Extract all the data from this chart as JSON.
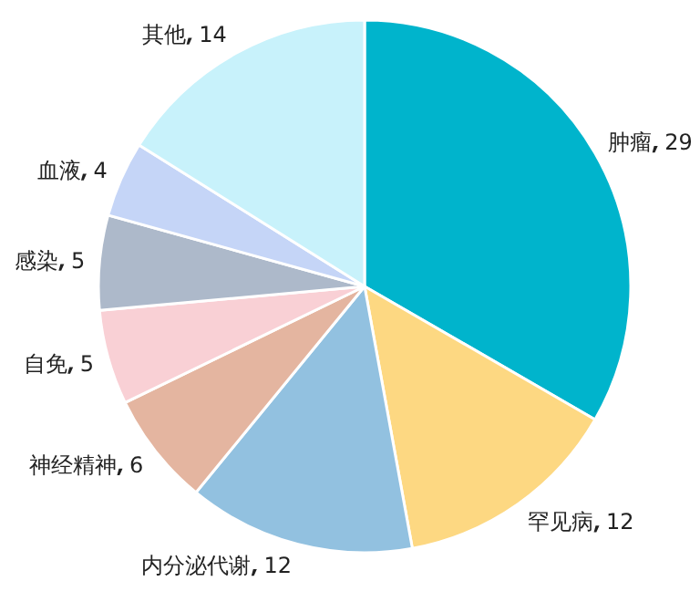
{
  "chart_data": {
    "type": "pie",
    "categories": [
      "肿瘤",
      "罕见病",
      "内分泌代谢",
      "神经精神",
      "自免",
      "感染",
      "血液",
      "其他"
    ],
    "values": [
      29,
      12,
      12,
      6,
      5,
      5,
      4,
      14
    ],
    "colors": [
      "#00b4cc",
      "#fdd882",
      "#92c1e0",
      "#e4b5a0",
      "#f9d0d5",
      "#adb9ca",
      "#c5d5f7",
      "#c8f2fb"
    ],
    "data_labels": true
  }
}
